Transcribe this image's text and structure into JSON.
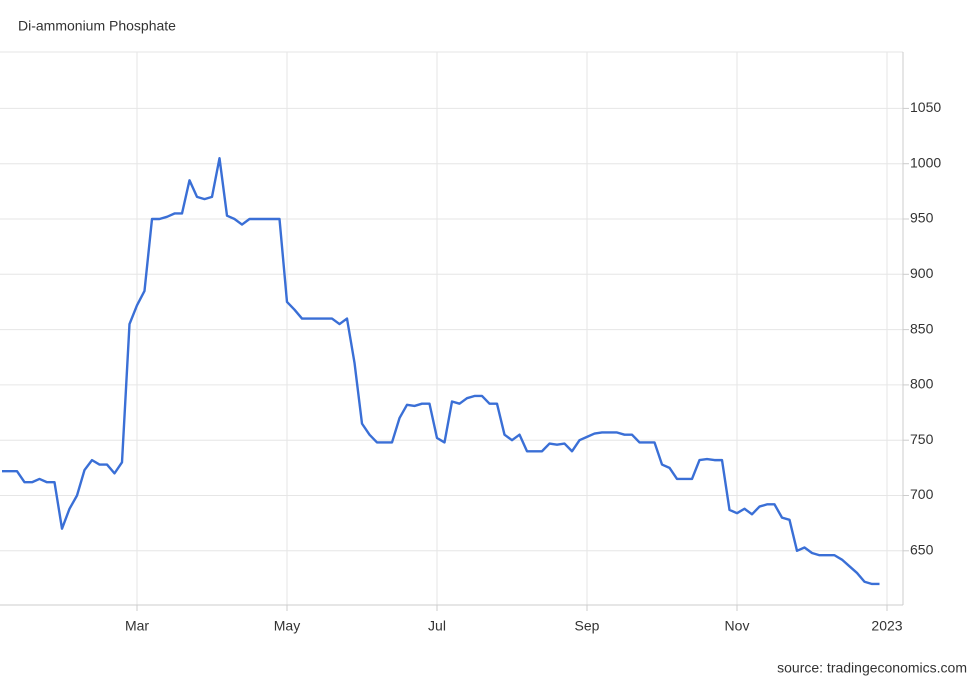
{
  "chart_data": {
    "type": "line",
    "title": "Di-ammonium Phosphate",
    "source": "source: tradingeconomics.com",
    "categories": [
      null,
      null,
      null,
      null,
      null,
      null,
      null,
      null,
      null,
      null,
      null,
      null,
      null,
      null,
      null,
      null,
      null,
      null,
      "Mar",
      null,
      null,
      null,
      null,
      null,
      null,
      null,
      null,
      null,
      null,
      null,
      null,
      null,
      null,
      null,
      null,
      null,
      null,
      null,
      "May",
      null,
      null,
      null,
      null,
      null,
      null,
      null,
      null,
      null,
      null,
      null,
      null,
      null,
      null,
      null,
      null,
      null,
      null,
      null,
      "Jul",
      null,
      null,
      null,
      null,
      null,
      null,
      null,
      null,
      null,
      null,
      null,
      null,
      null,
      null,
      null,
      null,
      null,
      null,
      null,
      "Sep",
      null,
      null,
      null,
      null,
      null,
      null,
      null,
      null,
      null,
      null,
      null,
      null,
      null,
      null,
      null,
      null,
      null,
      null,
      null,
      "Nov",
      null,
      null,
      null,
      null,
      null,
      null,
      null,
      null,
      null,
      null,
      null,
      null,
      null,
      null,
      null,
      null,
      null,
      null,
      null,
      "2023"
    ],
    "values": [
      722,
      722,
      722,
      712,
      712,
      715,
      712,
      712,
      670,
      688,
      700,
      723,
      732,
      728,
      728,
      720,
      730,
      855,
      872,
      885,
      950,
      950,
      952,
      955,
      955,
      985,
      970,
      968,
      970,
      1005,
      953,
      950,
      945,
      950,
      950,
      950,
      950,
      950,
      875,
      868,
      860,
      860,
      860,
      860,
      860,
      855,
      860,
      820,
      765,
      755,
      748,
      748,
      748,
      770,
      782,
      781,
      783,
      783,
      752,
      748,
      785,
      783,
      788,
      790,
      790,
      783,
      783,
      755,
      750,
      755,
      740,
      740,
      740,
      747,
      746,
      747,
      740,
      750,
      753,
      756,
      757,
      757,
      757,
      755,
      755,
      748,
      748,
      748,
      728,
      725,
      715,
      715,
      715,
      732,
      733,
      732,
      732,
      687,
      684,
      688,
      683,
      690,
      692,
      692,
      680,
      678,
      650,
      653,
      648,
      646,
      646,
      646,
      642,
      636,
      630,
      622,
      620,
      620,
      null
    ],
    "color": "#3a6fd6",
    "ylim": [
      601,
      1101
    ],
    "yticks": [
      650,
      700,
      750,
      800,
      850,
      900,
      950,
      1000,
      1050
    ],
    "grid": true
  }
}
